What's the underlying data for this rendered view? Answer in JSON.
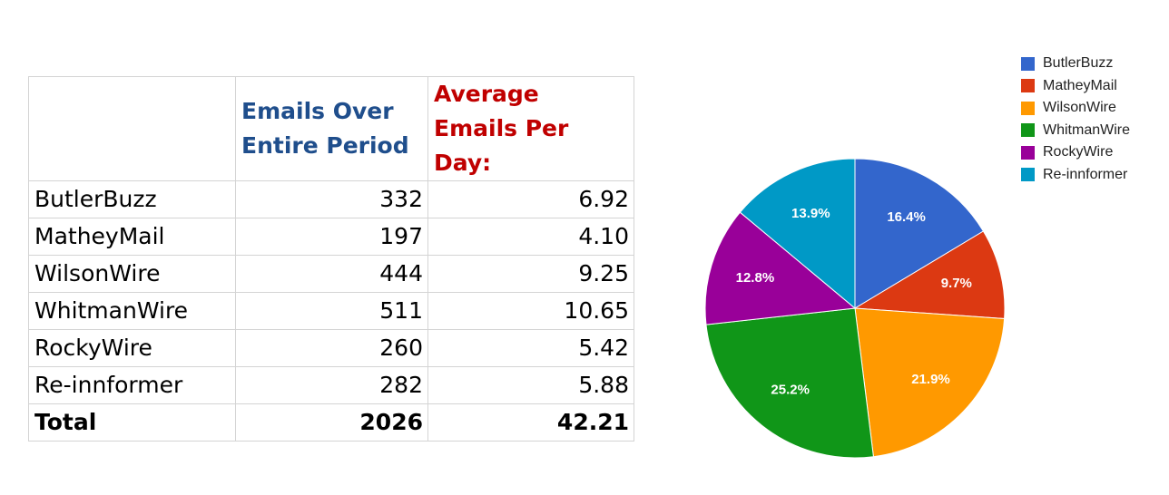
{
  "table": {
    "headers": [
      "",
      "Emails Over Entire Period",
      "Average Emails Per Day:"
    ],
    "header_colors": [
      "#000000",
      "#1f4e8c",
      "#c00000"
    ],
    "rows": [
      {
        "name": "ButlerBuzz",
        "emails": "332",
        "avg": "6.92"
      },
      {
        "name": "MatheyMail",
        "emails": "197",
        "avg": "4.10"
      },
      {
        "name": "WilsonWire",
        "emails": "444",
        "avg": "9.25"
      },
      {
        "name": "WhitmanWire",
        "emails": "511",
        "avg": "10.65"
      },
      {
        "name": "RockyWire",
        "emails": "260",
        "avg": "5.42"
      },
      {
        "name": "Re-innformer",
        "emails": "282",
        "avg": "5.88"
      }
    ],
    "total": {
      "name": "Total",
      "emails": "2026",
      "avg": "42.21"
    }
  },
  "chart_data": {
    "type": "pie",
    "categories": [
      "ButlerBuzz",
      "MatheyMail",
      "WilsonWire",
      "WhitmanWire",
      "RockyWire",
      "Re-innformer"
    ],
    "values": [
      332,
      197,
      444,
      511,
      260,
      282
    ],
    "percent_labels": [
      "16.4%",
      "9.7%",
      "21.9%",
      "25.2%",
      "12.8%",
      "13.9%"
    ],
    "colors": [
      "#3366cc",
      "#dc3912",
      "#ff9900",
      "#109618",
      "#990099",
      "#0099c6"
    ],
    "start_angle": "12 o'clock",
    "direction": "clockwise",
    "legend_position": "top-right"
  }
}
